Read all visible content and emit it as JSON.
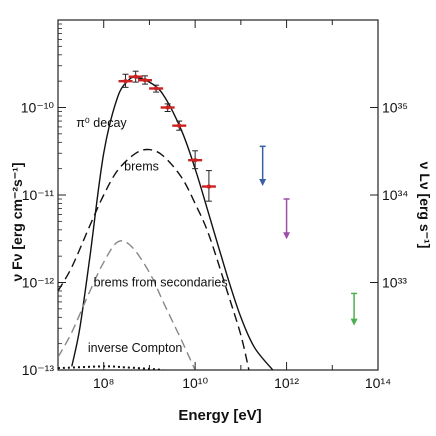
{
  "chart_data": {
    "type": "line",
    "xscale": "log",
    "yscale": "log",
    "xlim": [
      10000000,
      100000000000000
    ],
    "ylim": [
      1e-13,
      1e-09
    ],
    "right_ylim": [
      1e+32,
      1e+36
    ],
    "xlabel": "Energy [eV]",
    "ylabel": "ν Fν [erg cm⁻²s⁻¹]",
    "right_ylabel": "ν Lν [erg s⁻¹]",
    "xticks": [
      {
        "value": 100000000,
        "label": "10⁸"
      },
      {
        "value": 10000000000,
        "label": "10¹⁰"
      },
      {
        "value": 1000000000000,
        "label": "10¹²"
      },
      {
        "value": 100000000000000,
        "label": "10¹⁴"
      }
    ],
    "yticks": [
      {
        "value": 1e-10,
        "label": "10⁻¹⁰"
      },
      {
        "value": 1e-11,
        "label": "10⁻¹¹"
      },
      {
        "value": 1e-12,
        "label": "10⁻¹²"
      },
      {
        "value": 1e-13,
        "label": "10⁻¹³"
      }
    ],
    "right_yticks": [
      {
        "value": 1e+35,
        "label": "10³⁵"
      },
      {
        "value": 1e+34,
        "label": "10³⁴"
      },
      {
        "value": 1e+33,
        "label": "10³³"
      }
    ],
    "series": [
      {
        "label": "π⁰ decay",
        "style": "solid",
        "color": "#111111",
        "x": [
          20000000,
          30000000,
          50000000,
          100000000,
          200000000,
          350000000,
          500000000,
          1000000000,
          2000000000,
          5000000000,
          10000000000,
          20000000000,
          50000000000,
          100000000000,
          200000000000,
          500000000000
        ],
        "y": [
          1.1e-13,
          3e-13,
          2e-12,
          3e-11,
          1.3e-10,
          2.05e-10,
          2.2e-10,
          1.95e-10,
          1.4e-10,
          5.5e-11,
          2e-11,
          6e-12,
          1.2e-12,
          4e-13,
          1.8e-13,
          1e-13
        ]
      },
      {
        "label": "brems",
        "style": "dashed",
        "color": "#111111",
        "x": [
          10000000,
          20000000,
          50000000,
          100000000,
          200000000,
          500000000,
          1000000000,
          2000000000,
          5000000000,
          10000000000,
          20000000000,
          50000000000,
          100000000000,
          150000000000
        ],
        "y": [
          8e-13,
          1.5e-12,
          4.5e-12,
          1e-11,
          1.9e-11,
          3e-11,
          3.3e-11,
          2.8e-11,
          1.6e-11,
          8e-12,
          3.5e-12,
          8e-13,
          2.5e-13,
          1e-13
        ]
      },
      {
        "label": "brems from secondaries",
        "style": "dashed",
        "color": "#888888",
        "x": [
          10000000,
          20000000,
          50000000,
          100000000,
          200000000,
          400000000,
          1000000000,
          2000000000,
          5000000000,
          10000000000
        ],
        "y": [
          1.4e-13,
          2.7e-13,
          8e-13,
          1.7e-12,
          2.9e-12,
          2.6e-12,
          1.3e-12,
          6e-13,
          2.2e-13,
          1e-13
        ]
      },
      {
        "label": "inverse Compton",
        "style": "dotted",
        "color": "#111111",
        "x": [
          10000000,
          100000000,
          300000000,
          1000000000,
          2000000000
        ],
        "y": [
          1.05e-13,
          1.1e-13,
          1.07e-13,
          1.03e-13,
          1e-13
        ]
      }
    ],
    "data_points": [
      {
        "x": 300000000,
        "y": 2e-10,
        "yerr_lo": 1.7e-10,
        "yerr_hi": 2.4e-10
      },
      {
        "x": 500000000,
        "y": 2.25e-10,
        "yerr_lo": 1.95e-10,
        "yerr_hi": 2.6e-10
      },
      {
        "x": 800000000,
        "y": 2.05e-10,
        "yerr_lo": 1.85e-10,
        "yerr_hi": 2.3e-10
      },
      {
        "x": 1400000000,
        "y": 1.65e-10,
        "yerr_lo": 1.5e-10,
        "yerr_hi": 1.8e-10
      },
      {
        "x": 2500000000,
        "y": 1e-10,
        "yerr_lo": 9e-11,
        "yerr_hi": 1.1e-10
      },
      {
        "x": 4500000000,
        "y": 6.2e-11,
        "yerr_lo": 5.5e-11,
        "yerr_hi": 7e-11
      },
      {
        "x": 10000000000,
        "y": 2.5e-11,
        "yerr_lo": 2e-11,
        "yerr_hi": 3.2e-11
      },
      {
        "x": 20000000000,
        "y": 1.25e-11,
        "yerr_lo": 8.5e-12,
        "yerr_hi": 1.9e-11
      }
    ],
    "upper_limits": [
      {
        "x": 300000000000,
        "y": 3.6e-11,
        "y_low": 1.3e-11,
        "color": "#3b5fa6"
      },
      {
        "x": 1000000000000,
        "y": 9e-12,
        "y_low": 3.2e-12,
        "color": "#9b4fa8"
      },
      {
        "x": 30000000000000,
        "y": 7.5e-13,
        "y_low": 3.3e-13,
        "color": "#4caf50"
      }
    ],
    "annotations": [
      {
        "text": "π⁰ decay",
        "x": 25000000,
        "y": 6e-11
      },
      {
        "text": "brems",
        "x": 280000000,
        "y": 1.9e-11
      },
      {
        "text": "brems from secondaries",
        "x": 60000000,
        "y": 9e-13
      },
      {
        "text": "inverse Compton",
        "x": 45000000,
        "y": 1.6e-13
      }
    ],
    "data_color": "#cc2222",
    "grid": false,
    "legend": "none"
  }
}
